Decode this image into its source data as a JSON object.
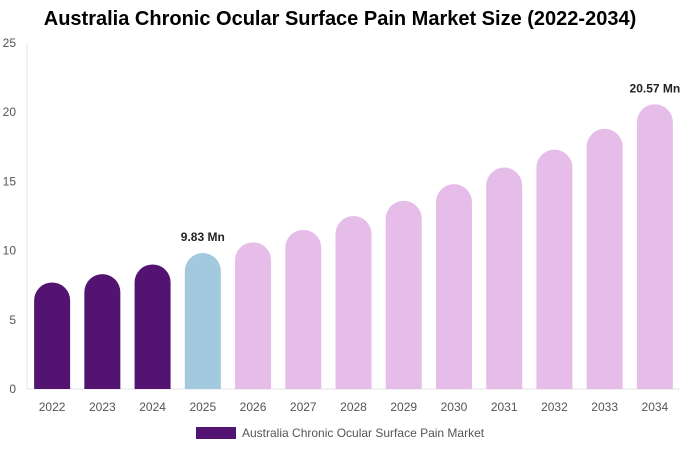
{
  "chart_data": {
    "type": "bar",
    "title": "Australia Chronic Ocular Surface Pain Market Size (2022-2034)",
    "categories": [
      "2022",
      "2023",
      "2024",
      "2025",
      "2026",
      "2027",
      "2028",
      "2029",
      "2030",
      "2031",
      "2032",
      "2033",
      "2034"
    ],
    "series": [
      {
        "name": "Australia Chronic Ocular Surface Pain Market",
        "values": [
          7.7,
          8.3,
          9.0,
          9.83,
          10.6,
          11.5,
          12.5,
          13.6,
          14.8,
          16.0,
          17.3,
          18.8,
          20.57
        ]
      }
    ],
    "bar_colors": [
      "#521470",
      "#521470",
      "#521470",
      "#a3c9de",
      "#e6bde9",
      "#e6bde9",
      "#e6bde9",
      "#e6bde9",
      "#e6bde9",
      "#e6bde9",
      "#e6bde9",
      "#e6bde9",
      "#e6bde9"
    ],
    "data_labels": [
      {
        "index": 3,
        "text": "9.83 Mn"
      },
      {
        "index": 12,
        "text": "20.57 Mn"
      }
    ],
    "ylim": [
      0,
      25
    ],
    "yticks": [
      0,
      5,
      10,
      15,
      20,
      25
    ],
    "xlabel": "",
    "ylabel": "",
    "grid": false,
    "legend": {
      "position": "bottom",
      "label": "Australia Chronic Ocular Surface Pain Market",
      "color": "#521470"
    }
  }
}
